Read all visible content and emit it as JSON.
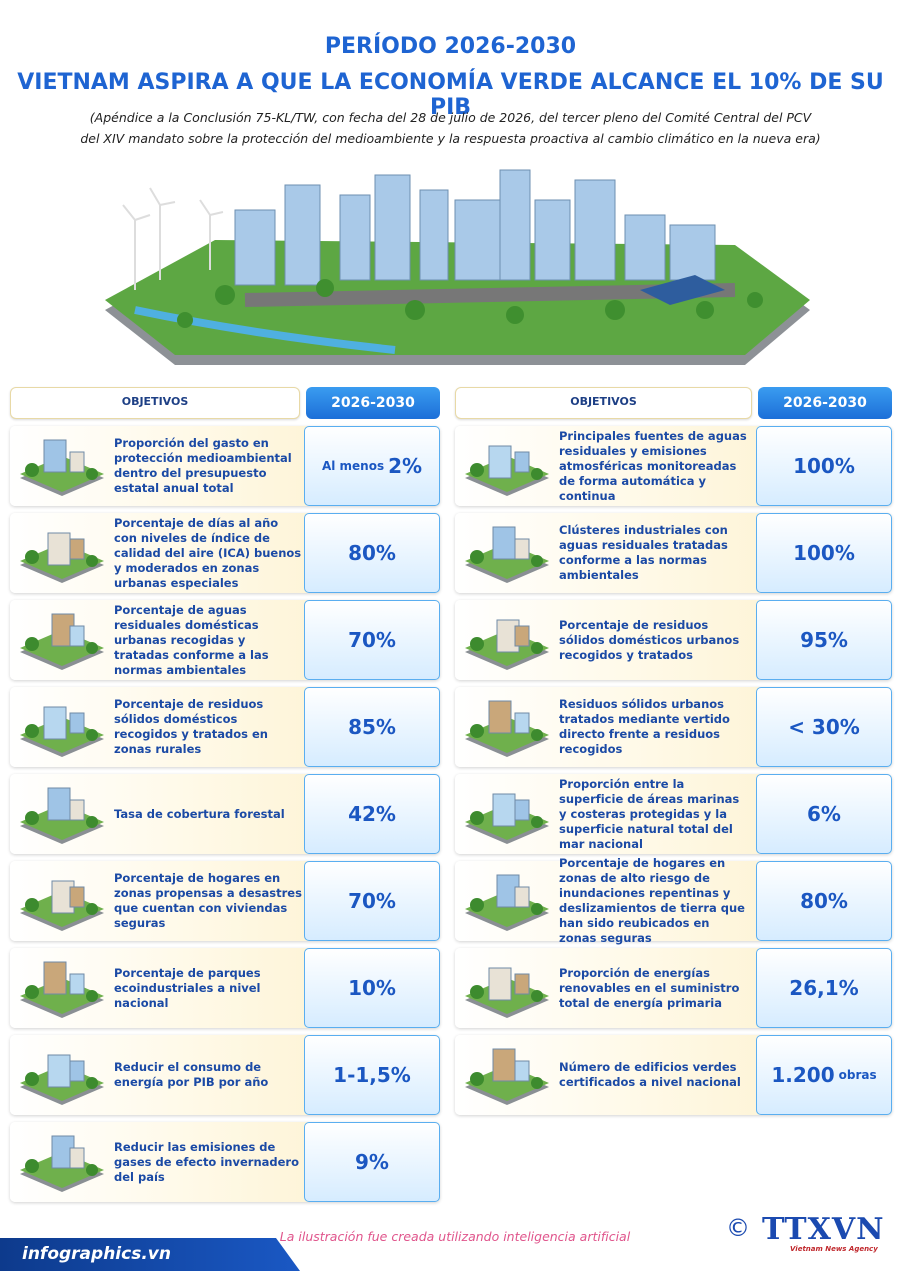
{
  "header": {
    "period": "PERÍODO 2026-2030",
    "title": "VIETNAM ASPIRA A QUE LA ECONOMÍA VERDE ALCANCE EL 10% DE SU PIB",
    "subtitle": [
      "(Apéndice a la Conclusión 75-KL/TW, con fecha del 28 de julio de 2026, del tercer pleno del Comité Central del PCV",
      "del XIV mandato sobre la protección del medioambiente y la respuesta proactiva al cambio climático en la nueva era)"
    ]
  },
  "columns": [
    {
      "objectives_header": "OBJETIVOS",
      "period_header": "2026-2030",
      "rows": [
        {
          "text": "Proporción del gasto en protección medioambiental dentro del presupuesto estatal anual total",
          "prefix": "Al menos",
          "value": "2%"
        },
        {
          "text": "Porcentaje de días al año con niveles de índice de calidad del aire (ICA) buenos y moderados en zonas urbanas especiales",
          "value": "80%"
        },
        {
          "text": "Porcentaje de aguas residuales domésticas urbanas recogidas y tratadas conforme a las normas ambientales",
          "value": "70%"
        },
        {
          "text": "Porcentaje de residuos sólidos domésticos recogidos y tratados en zonas rurales",
          "value": "85%"
        },
        {
          "text": "Tasa de cobertura forestal",
          "value": "42%"
        },
        {
          "text": "Porcentaje de hogares en zonas propensas a desastres que cuentan con viviendas seguras",
          "value": "70%"
        },
        {
          "text": "Porcentaje de parques ecoindustriales a nivel nacional",
          "value": "10%"
        },
        {
          "text": "Reducir el consumo de energía por PIB por año",
          "value": "1-1,5%"
        },
        {
          "text": "Reducir las emisiones de gases de efecto invernadero del país",
          "value": "9%"
        }
      ]
    },
    {
      "objectives_header": "OBJETIVOS",
      "period_header": "2026-2030",
      "rows": [
        {
          "text": "Principales fuentes de aguas residuales y emisiones atmosféricas monitoreadas de forma automática y continua",
          "value": "100%"
        },
        {
          "text": "Clústeres industriales con aguas residuales tratadas conforme a las normas ambientales",
          "value": "100%"
        },
        {
          "text": "Porcentaje de residuos sólidos domésticos urbanos recogidos y tratados",
          "value": "95%"
        },
        {
          "text": "Residuos sólidos urbanos tratados mediante vertido directo frente a residuos recogidos",
          "value": "< 30%"
        },
        {
          "text": "Proporción entre la superficie de áreas marinas y costeras protegidas y la superficie natural total del mar nacional",
          "value": "6%"
        },
        {
          "text": "Porcentaje de hogares en zonas de alto riesgo de inundaciones repentinas y deslizamientos de tierra que han sido reubicados en zonas seguras",
          "value": "80%"
        },
        {
          "text": "Proporción de energías renovables en el suministro total de energía primaria",
          "value": "26,1%"
        },
        {
          "text": "Número de edificios verdes certificados a nivel nacional",
          "value": "1.200",
          "suffix": "obras"
        }
      ]
    }
  ],
  "footer": {
    "credit": "La ilustración fue creada utilizando inteligencia artificial",
    "site": "infographics.vn",
    "copyright": "©",
    "logo": "TTXVN",
    "logo_subtitle": "Vietnam News Agency"
  }
}
